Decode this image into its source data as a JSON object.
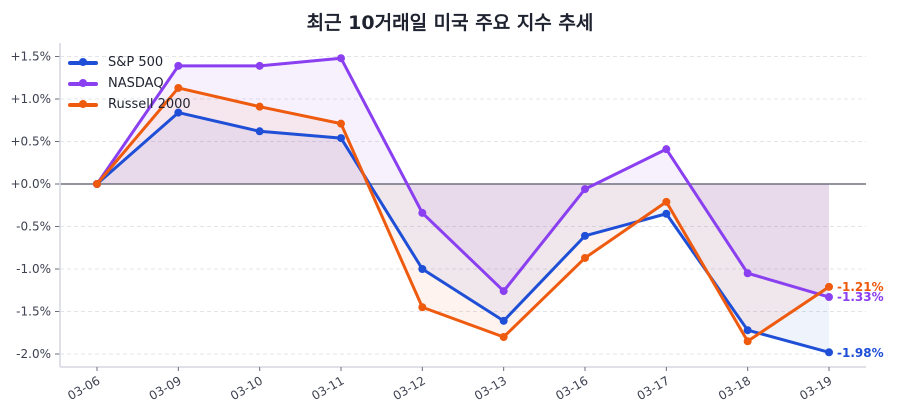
{
  "title": "최근 10거래일 미국 주요 지수 추세",
  "legend": [
    {
      "label": "S&P 500",
      "color": "#1f4fd6"
    },
    {
      "label": "NASDAQ",
      "color": "#8a3ff0"
    },
    {
      "label": "Russell 2000",
      "color": "#ee5a0e"
    }
  ],
  "end_labels": [
    {
      "text": "-1.21%",
      "color": "#ee5a0e"
    },
    {
      "text": "-1.33%",
      "color": "#8a3ff0"
    },
    {
      "text": "-1.98%",
      "color": "#1f4fd6"
    }
  ],
  "chart_data": {
    "type": "line",
    "title": "최근 10거래일 미국 주요 지수 추세",
    "xlabel": "",
    "ylabel": "",
    "categories": [
      "03-06",
      "03-09",
      "03-10",
      "03-11",
      "03-12",
      "03-13",
      "03-16",
      "03-17",
      "03-18",
      "03-19"
    ],
    "series": [
      {
        "name": "S&P 500",
        "color": "#1f4fd6",
        "values": [
          0.0,
          0.84,
          0.62,
          0.54,
          -1.0,
          -1.61,
          -0.61,
          -0.35,
          -1.72,
          -1.98
        ]
      },
      {
        "name": "NASDAQ",
        "color": "#8a3ff0",
        "values": [
          0.0,
          1.39,
          1.39,
          1.48,
          -0.34,
          -1.26,
          -0.06,
          0.41,
          -1.05,
          -1.33
        ]
      },
      {
        "name": "Russell 2000",
        "color": "#ee5a0e",
        "values": [
          0.0,
          1.13,
          0.91,
          0.71,
          -1.45,
          -1.8,
          -0.87,
          -0.21,
          -1.85,
          -1.21
        ]
      }
    ],
    "yticks": [
      "+1.5%",
      "+1.0%",
      "+0.5%",
      "+0.0%",
      "-0.5%",
      "-1.0%",
      "-1.5%",
      "-2.0%"
    ],
    "ytick_values": [
      1.5,
      1.0,
      0.5,
      0.0,
      -0.5,
      -1.0,
      -1.5,
      -2.0
    ],
    "ylim": [
      -2.2,
      1.65
    ],
    "grid": true,
    "legend_position": "upper left",
    "annotations": [
      "-1.21%",
      "-1.33%",
      "-1.98%"
    ]
  }
}
